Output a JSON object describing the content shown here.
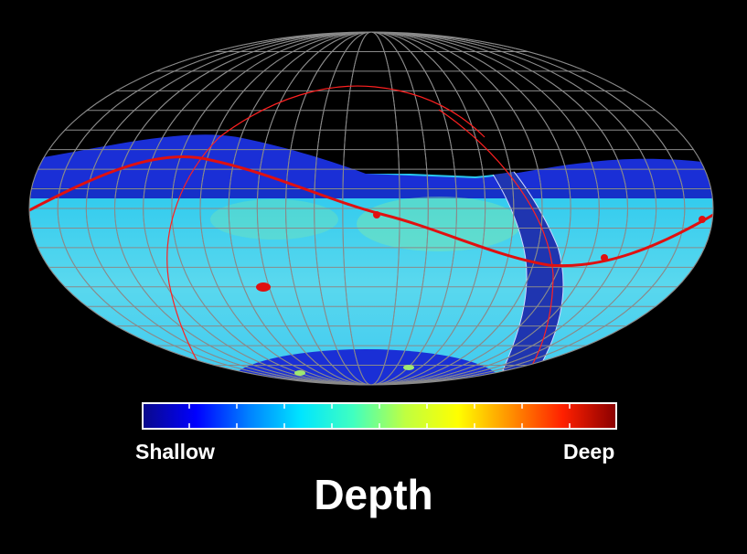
{
  "map": {
    "projection": "mollweide",
    "graticule_color": "#8a8a8a",
    "survey_colors": {
      "shallow_edge": "#1a2fd6",
      "main": "#4fd6f0",
      "stripe": "#1f35b0",
      "ecliptic": "#e01010",
      "galactic": "#ff2020"
    }
  },
  "colorbar": {
    "stops": [
      "#0a0a8c",
      "#0000ff",
      "#0080ff",
      "#00e5ff",
      "#40ffc0",
      "#c0ff40",
      "#ffff00",
      "#ff9000",
      "#ff2000",
      "#8b0000"
    ],
    "tick_count": 11
  },
  "labels": {
    "low": "Shallow",
    "high": "Deep",
    "title": "Depth"
  }
}
